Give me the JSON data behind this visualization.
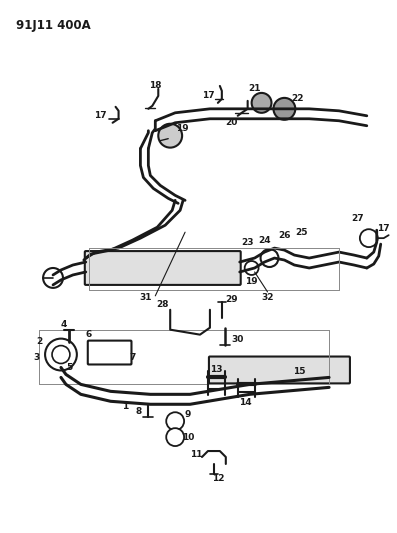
{
  "title": "91J11 400A",
  "bg_color": "#ffffff",
  "line_color": "#1a1a1a",
  "title_fontsize": 8.5,
  "label_fontsize": 6.5,
  "figsize": [
    3.97,
    5.33
  ],
  "dpi": 100
}
